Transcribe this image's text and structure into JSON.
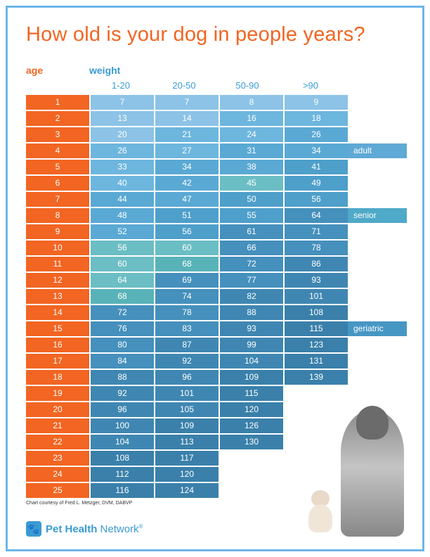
{
  "title": "How old is your dog in people years?",
  "headers": {
    "age": "age",
    "weight": "weight"
  },
  "weight_cols": [
    "1-20",
    "20-50",
    "50-90",
    ">90"
  ],
  "credit": "Chart courtesy of Fred L. Metzger, DVM, DABVP",
  "brand": {
    "name": "Pet Health Network",
    "bold": "Pet Health"
  },
  "life_labels": [
    {
      "text": "adult",
      "row": 3,
      "color": "#5fa9d6"
    },
    {
      "text": "senior",
      "row": 7,
      "color": "#4fa9c8"
    },
    {
      "text": "geriatric",
      "row": 14,
      "color": "#4696c4"
    }
  ],
  "colors": {
    "orange": "#f26522",
    "border": "#6db6e8",
    "head_blue": "#3a9bd4"
  },
  "cell_palette": {
    "l1": "#8cc3e6",
    "l2": "#6db6de",
    "l3": "#5aa9d4",
    "l4": "#4e9fca",
    "t1": "#6bbec4",
    "t2": "#58b3b8",
    "d1": "#4590bc",
    "d2": "#3f87b2",
    "d3": "#3a80aa"
  },
  "rows": [
    {
      "age": 1,
      "cells": [
        {
          "v": 7,
          "c": "l1"
        },
        {
          "v": 7,
          "c": "l1"
        },
        {
          "v": 8,
          "c": "l1"
        },
        {
          "v": 9,
          "c": "l1"
        }
      ]
    },
    {
      "age": 2,
      "cells": [
        {
          "v": 13,
          "c": "l1"
        },
        {
          "v": 14,
          "c": "l1"
        },
        {
          "v": 16,
          "c": "l2"
        },
        {
          "v": 18,
          "c": "l2"
        }
      ]
    },
    {
      "age": 3,
      "cells": [
        {
          "v": 20,
          "c": "l1"
        },
        {
          "v": 21,
          "c": "l2"
        },
        {
          "v": 24,
          "c": "l2"
        },
        {
          "v": 26,
          "c": "l3"
        }
      ]
    },
    {
      "age": 4,
      "cells": [
        {
          "v": 26,
          "c": "l2"
        },
        {
          "v": 27,
          "c": "l2"
        },
        {
          "v": 31,
          "c": "l3"
        },
        {
          "v": 34,
          "c": "l3"
        }
      ]
    },
    {
      "age": 5,
      "cells": [
        {
          "v": 33,
          "c": "l2"
        },
        {
          "v": 34,
          "c": "l3"
        },
        {
          "v": 38,
          "c": "l3"
        },
        {
          "v": 41,
          "c": "l4"
        }
      ]
    },
    {
      "age": 6,
      "cells": [
        {
          "v": 40,
          "c": "l2"
        },
        {
          "v": 42,
          "c": "l3"
        },
        {
          "v": 45,
          "c": "t1"
        },
        {
          "v": 49,
          "c": "l4"
        }
      ]
    },
    {
      "age": 7,
      "cells": [
        {
          "v": 44,
          "c": "l3"
        },
        {
          "v": 47,
          "c": "l3"
        },
        {
          "v": 50,
          "c": "l4"
        },
        {
          "v": 56,
          "c": "l4"
        }
      ]
    },
    {
      "age": 8,
      "cells": [
        {
          "v": 48,
          "c": "l3"
        },
        {
          "v": 51,
          "c": "l4"
        },
        {
          "v": 55,
          "c": "l4"
        },
        {
          "v": 64,
          "c": "d1"
        }
      ]
    },
    {
      "age": 9,
      "cells": [
        {
          "v": 52,
          "c": "l3"
        },
        {
          "v": 56,
          "c": "l4"
        },
        {
          "v": 61,
          "c": "d1"
        },
        {
          "v": 71,
          "c": "d1"
        }
      ]
    },
    {
      "age": 10,
      "cells": [
        {
          "v": 56,
          "c": "t1"
        },
        {
          "v": 60,
          "c": "t1"
        },
        {
          "v": 66,
          "c": "d1"
        },
        {
          "v": 78,
          "c": "d1"
        }
      ]
    },
    {
      "age": 11,
      "cells": [
        {
          "v": 60,
          "c": "t1"
        },
        {
          "v": 68,
          "c": "t2"
        },
        {
          "v": 72,
          "c": "d1"
        },
        {
          "v": 86,
          "c": "d2"
        }
      ]
    },
    {
      "age": 12,
      "cells": [
        {
          "v": 64,
          "c": "t1"
        },
        {
          "v": 69,
          "c": "d1"
        },
        {
          "v": 77,
          "c": "d1"
        },
        {
          "v": 93,
          "c": "d2"
        }
      ]
    },
    {
      "age": 13,
      "cells": [
        {
          "v": 68,
          "c": "t2"
        },
        {
          "v": 74,
          "c": "d1"
        },
        {
          "v": 82,
          "c": "d2"
        },
        {
          "v": 101,
          "c": "d2"
        }
      ]
    },
    {
      "age": 14,
      "cells": [
        {
          "v": 72,
          "c": "d1"
        },
        {
          "v": 78,
          "c": "d1"
        },
        {
          "v": 88,
          "c": "d2"
        },
        {
          "v": 108,
          "c": "d3"
        }
      ]
    },
    {
      "age": 15,
      "cells": [
        {
          "v": 76,
          "c": "d1"
        },
        {
          "v": 83,
          "c": "d1"
        },
        {
          "v": 93,
          "c": "d2"
        },
        {
          "v": 115,
          "c": "d3"
        }
      ]
    },
    {
      "age": 16,
      "cells": [
        {
          "v": 80,
          "c": "d1"
        },
        {
          "v": 87,
          "c": "d2"
        },
        {
          "v": 99,
          "c": "d2"
        },
        {
          "v": 123,
          "c": "d3"
        }
      ]
    },
    {
      "age": 17,
      "cells": [
        {
          "v": 84,
          "c": "d1"
        },
        {
          "v": 92,
          "c": "d2"
        },
        {
          "v": 104,
          "c": "d2"
        },
        {
          "v": 131,
          "c": "d3"
        }
      ]
    },
    {
      "age": 18,
      "cells": [
        {
          "v": 88,
          "c": "d2"
        },
        {
          "v": 96,
          "c": "d2"
        },
        {
          "v": 109,
          "c": "d3"
        },
        {
          "v": 139,
          "c": "d3"
        }
      ]
    },
    {
      "age": 19,
      "cells": [
        {
          "v": 92,
          "c": "d2"
        },
        {
          "v": 101,
          "c": "d2"
        },
        {
          "v": 115,
          "c": "d3"
        }
      ]
    },
    {
      "age": 20,
      "cells": [
        {
          "v": 96,
          "c": "d2"
        },
        {
          "v": 105,
          "c": "d2"
        },
        {
          "v": 120,
          "c": "d3"
        }
      ]
    },
    {
      "age": 21,
      "cells": [
        {
          "v": 100,
          "c": "d2"
        },
        {
          "v": 109,
          "c": "d3"
        },
        {
          "v": 126,
          "c": "d3"
        }
      ]
    },
    {
      "age": 22,
      "cells": [
        {
          "v": 104,
          "c": "d2"
        },
        {
          "v": 113,
          "c": "d3"
        },
        {
          "v": 130,
          "c": "d3"
        }
      ]
    },
    {
      "age": 23,
      "cells": [
        {
          "v": 108,
          "c": "d3"
        },
        {
          "v": 117,
          "c": "d3"
        }
      ]
    },
    {
      "age": 24,
      "cells": [
        {
          "v": 112,
          "c": "d3"
        },
        {
          "v": 120,
          "c": "d3"
        }
      ]
    },
    {
      "age": 25,
      "cells": [
        {
          "v": 116,
          "c": "d3"
        },
        {
          "v": 124,
          "c": "d3"
        }
      ]
    }
  ]
}
